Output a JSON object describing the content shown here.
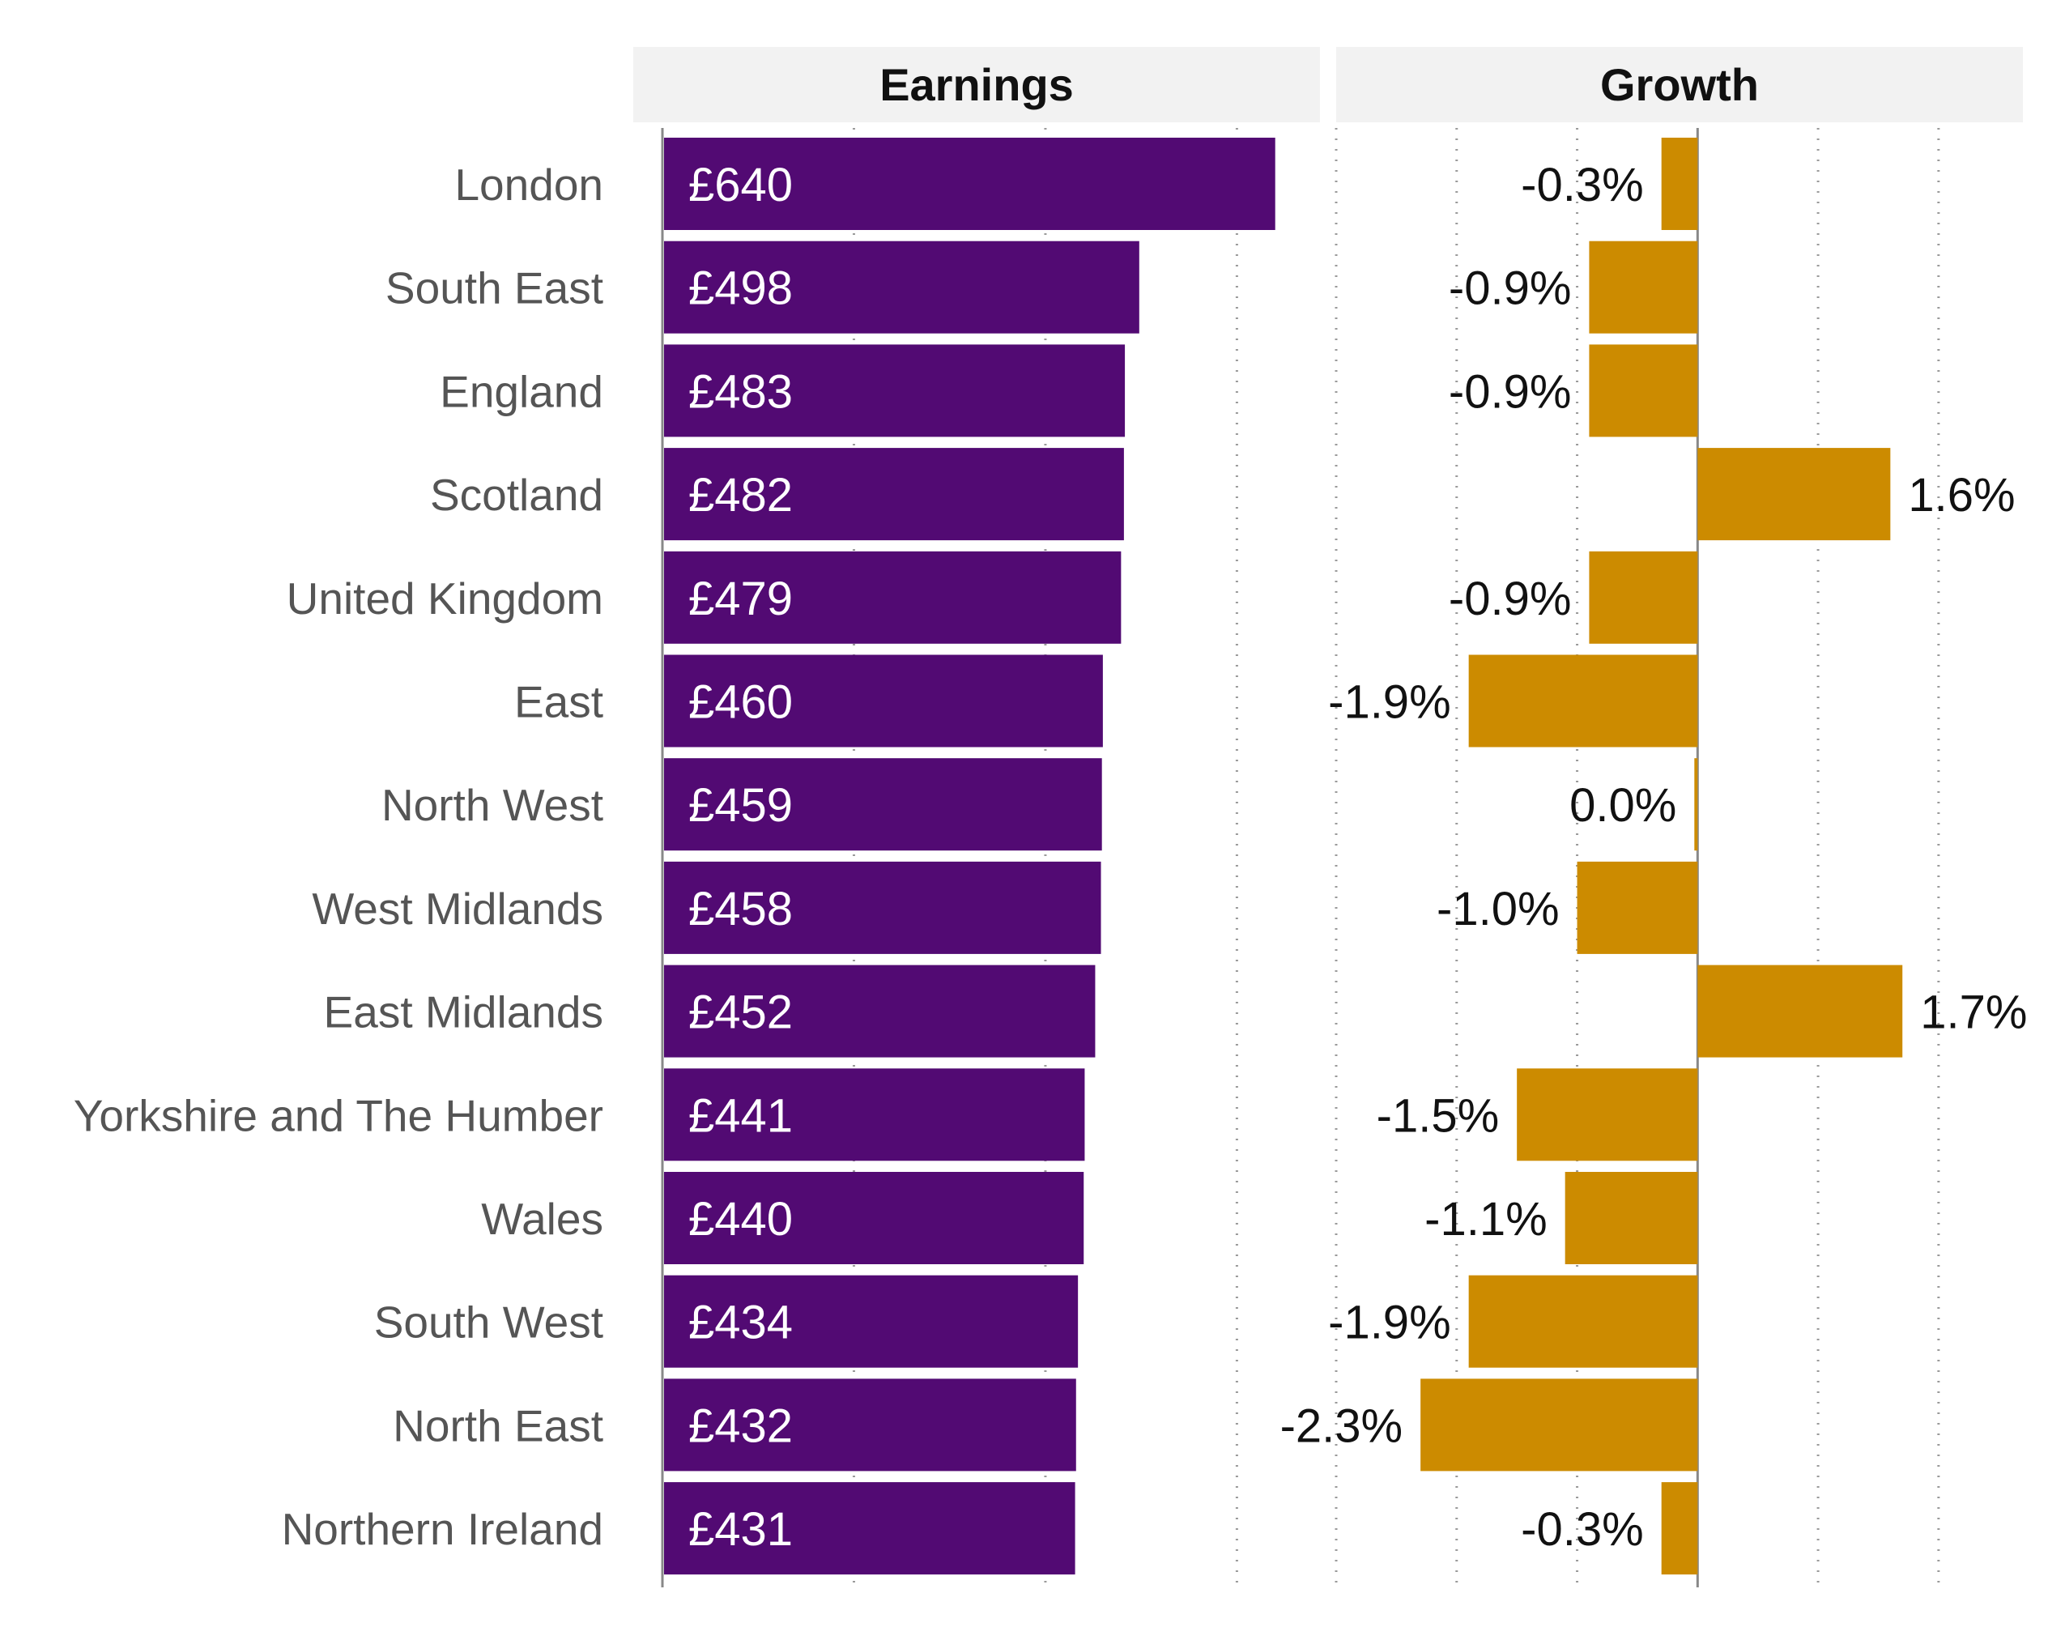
{
  "colors": {
    "earnings_bar": "#520a73",
    "growth_bar": "#cc8b00",
    "header_bg": "#f2f2f2",
    "grid": "#9a9a9a",
    "axis": "#888888"
  },
  "chart_data": [
    {
      "type": "bar",
      "orientation": "horizontal",
      "title": "Earnings",
      "categories": [
        "London",
        "South East",
        "England",
        "Scotland",
        "United Kingdom",
        "East",
        "North West",
        "West Midlands",
        "East Midlands",
        "Yorkshire and The Humber",
        "Wales",
        "South West",
        "North East",
        "Northern Ireland"
      ],
      "values": [
        640,
        498,
        483,
        482,
        479,
        460,
        459,
        458,
        452,
        441,
        440,
        434,
        432,
        431
      ],
      "value_labels": [
        "£640",
        "£498",
        "£483",
        "£482",
        "£479",
        "£460",
        "£459",
        "£458",
        "£452",
        "£441",
        "£440",
        "£434",
        "£432",
        "£431"
      ],
      "xlim": [
        0,
        680
      ],
      "grid_ticks": [
        0,
        200,
        400,
        600
      ],
      "grid": true
    },
    {
      "type": "bar",
      "orientation": "horizontal",
      "title": "Growth",
      "categories": [
        "London",
        "South East",
        "England",
        "Scotland",
        "United Kingdom",
        "East",
        "North West",
        "West Midlands",
        "East Midlands",
        "Yorkshire and The Humber",
        "Wales",
        "South West",
        "North East",
        "Northern Ireland"
      ],
      "values": [
        -0.3,
        -0.9,
        -0.9,
        1.6,
        -0.9,
        -1.9,
        0.0,
        -1.0,
        1.7,
        -1.5,
        -1.1,
        -1.9,
        -2.3,
        -0.3
      ],
      "value_labels": [
        "-0.3%",
        "-0.9%",
        "-0.9%",
        "1.6%",
        "-0.9%",
        "-1.9%",
        "0.0%",
        "-1.0%",
        "1.7%",
        "-1.5%",
        "-1.1%",
        "-1.9%",
        "-2.3%",
        "-0.3%"
      ],
      "xlim": [
        -3.0,
        2.7
      ],
      "grid_ticks": [
        -3,
        -2,
        -1,
        0,
        1,
        2
      ],
      "grid": true
    }
  ]
}
